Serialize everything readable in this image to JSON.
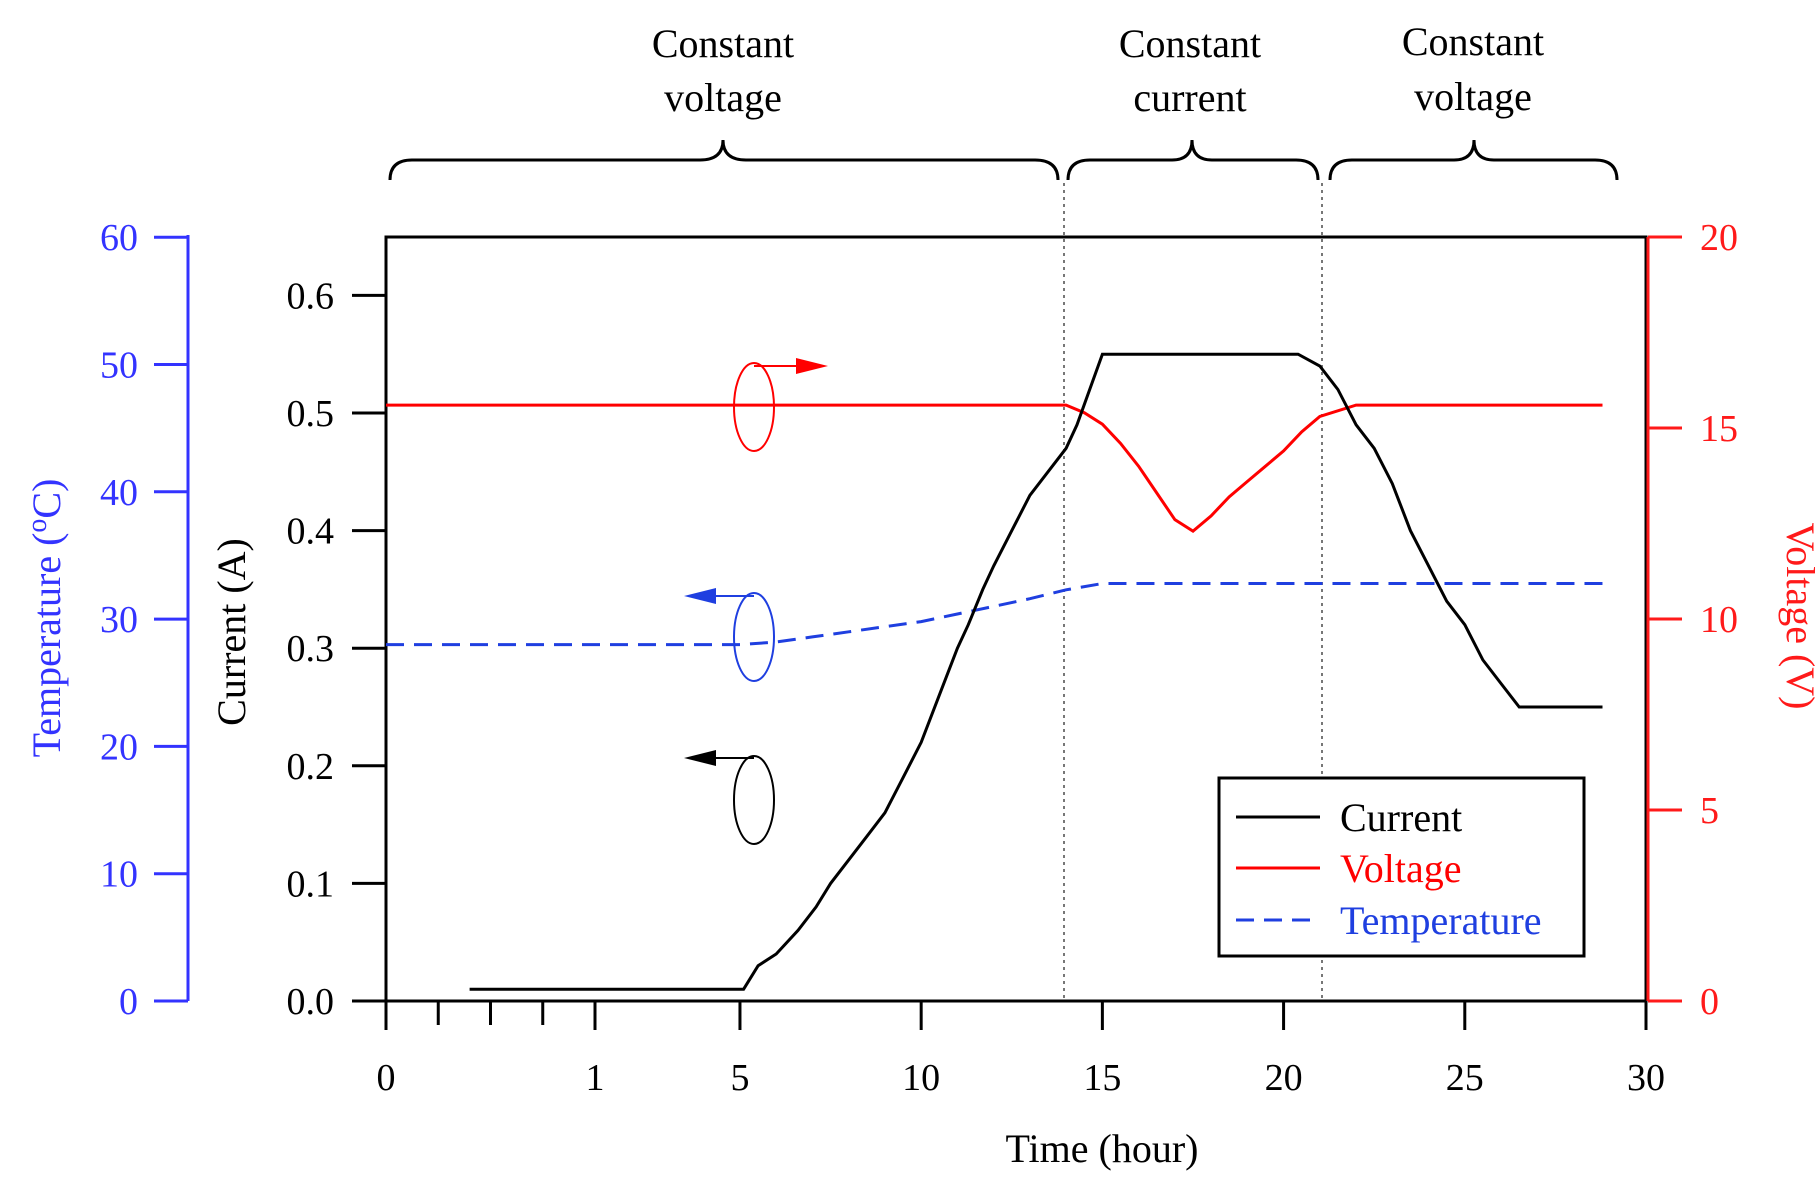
{
  "colors": {
    "current": "#000000",
    "voltage": "#ff0000",
    "temperature": "#1f3fe0",
    "temp_axis": "#3333ff",
    "voltage_axis": "#ff1a1a",
    "divider": "#777777"
  },
  "phases": [
    {
      "line1": "Constant",
      "line2": "voltage",
      "x_start": 0,
      "x_end": 14
    },
    {
      "line1": "Constant",
      "line2": "current",
      "x_start": 14,
      "x_end": 21
    },
    {
      "line1": "Constant",
      "line2": "voltage",
      "x_start": 21,
      "x_end": 28.8
    }
  ],
  "axes": {
    "temperature": {
      "label": "Temperature (oC)",
      "label_main": "Temperature (",
      "label_sup": "o",
      "label_end": "C)",
      "ticks": [
        "0",
        "10",
        "20",
        "30",
        "40",
        "50",
        "60"
      ],
      "range": [
        0,
        60
      ]
    },
    "current": {
      "label": "Current (A)",
      "ticks": [
        "0.0",
        "0.1",
        "0.2",
        "0.3",
        "0.4",
        "0.5",
        "0.6"
      ],
      "range": [
        0,
        0.65
      ]
    },
    "voltage": {
      "label": "Voltage (V)",
      "ticks": [
        "0",
        "5",
        "10",
        "15",
        "20"
      ],
      "range": [
        0,
        20
      ]
    },
    "time": {
      "label": "Time (hour)",
      "tick_labels": [
        "0",
        "1",
        "5",
        "10",
        "15",
        "20",
        "25",
        "30"
      ],
      "range": [
        0,
        30
      ]
    }
  },
  "legend": {
    "current": "Current",
    "voltage": "Voltage",
    "temperature": "Temperature"
  },
  "chart_data": {
    "type": "line",
    "title": "",
    "xlabel": "Time (hour)",
    "xlim": [
      0,
      30
    ],
    "x_ticks": [
      0,
      1,
      5,
      10,
      15,
      20,
      25,
      30
    ],
    "series": [
      {
        "name": "Current",
        "axis": "left-inner",
        "unit": "A",
        "x": [
          0.4,
          1.2,
          2.2,
          3.3,
          4.2,
          5.1,
          5.5,
          6.0,
          6.6,
          7.1,
          7.5,
          8.0,
          8.5,
          9.0,
          9.5,
          10.0,
          10.5,
          11.0,
          11.3,
          11.7,
          12.0,
          12.5,
          13.0,
          13.5,
          14.0,
          14.3,
          15.0,
          16.0,
          17.0,
          18.0,
          19.0,
          20.0,
          20.4,
          21.0,
          21.5,
          22.0,
          22.5,
          23.0,
          23.5,
          24.0,
          24.5,
          25.0,
          25.5,
          26.0,
          26.5,
          27.0,
          27.5,
          28.0,
          28.3,
          28.8
        ],
        "y": [
          0.01,
          0.01,
          0.01,
          0.01,
          0.01,
          0.01,
          0.03,
          0.04,
          0.06,
          0.08,
          0.1,
          0.12,
          0.14,
          0.16,
          0.19,
          0.22,
          0.26,
          0.3,
          0.32,
          0.35,
          0.37,
          0.4,
          0.43,
          0.45,
          0.47,
          0.49,
          0.55,
          0.55,
          0.55,
          0.55,
          0.55,
          0.55,
          0.55,
          0.54,
          0.52,
          0.49,
          0.47,
          0.44,
          0.4,
          0.37,
          0.34,
          0.32,
          0.29,
          0.27,
          0.25,
          0.25,
          0.25,
          0.25,
          0.25,
          0.25
        ]
      },
      {
        "name": "Voltage",
        "axis": "right",
        "unit": "V",
        "x": [
          0,
          5,
          10,
          14,
          14.5,
          15,
          15.5,
          16,
          16.5,
          17,
          17.5,
          18,
          18.5,
          19,
          19.5,
          20,
          20.5,
          21,
          22,
          25,
          28.8
        ],
        "y": [
          15.6,
          15.6,
          15.6,
          15.6,
          15.4,
          15.1,
          14.6,
          14.0,
          13.3,
          12.6,
          12.3,
          12.7,
          13.2,
          13.6,
          14.0,
          14.4,
          14.9,
          15.3,
          15.6,
          15.6,
          15.6
        ]
      },
      {
        "name": "Temperature",
        "axis": "left-outer",
        "unit": "oC",
        "x": [
          0,
          3,
          5,
          6,
          7,
          8,
          9,
          10,
          11,
          12,
          13,
          14,
          15,
          16,
          18,
          20,
          22,
          25,
          28.8
        ],
        "y": [
          28,
          28,
          28,
          28.2,
          28.6,
          29,
          29.4,
          29.8,
          30.4,
          31,
          31.6,
          32.3,
          32.8,
          32.8,
          32.8,
          32.8,
          32.8,
          32.8,
          32.8
        ]
      }
    ]
  }
}
